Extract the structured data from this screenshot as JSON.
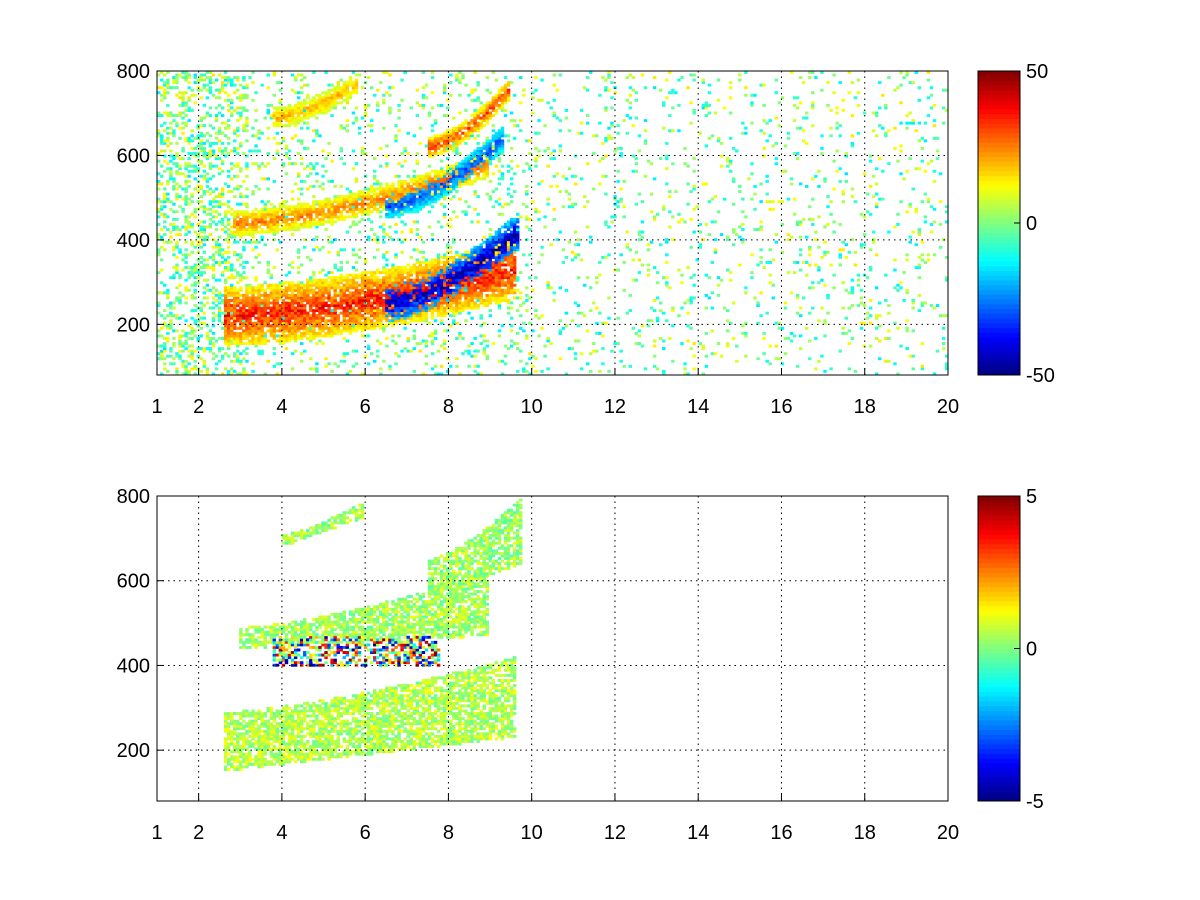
{
  "chart_data": [
    {
      "type": "heatmap",
      "title": "",
      "xlabel": "",
      "ylabel": "",
      "xlim": [
        1,
        20
      ],
      "ylim": [
        80,
        800
      ],
      "x_ticks": [
        1,
        2,
        4,
        6,
        8,
        10,
        12,
        14,
        16,
        18,
        20
      ],
      "y_ticks": [
        200,
        400,
        600,
        800
      ],
      "grid": true,
      "colormap": "jet",
      "clim": [
        -50,
        50
      ],
      "colorbar_ticks": [
        50,
        0,
        -50
      ],
      "features": [
        {
          "kind": "ridge",
          "x_start": 2.6,
          "x_end": 9.6,
          "y_start": 220,
          "y_end": 330,
          "value": 35,
          "spread": 70
        },
        {
          "kind": "ridge",
          "x_start": 6.5,
          "x_end": 9.7,
          "y_start": 250,
          "y_end": 420,
          "value": -45,
          "spread": 45
        },
        {
          "kind": "ridge",
          "x_start": 2.8,
          "x_end": 9.0,
          "y_start": 440,
          "y_end": 580,
          "value": 25,
          "spread": 30
        },
        {
          "kind": "ridge",
          "x_start": 6.5,
          "x_end": 9.3,
          "y_start": 480,
          "y_end": 640,
          "value": -30,
          "spread": 30
        },
        {
          "kind": "ridge",
          "x_start": 3.8,
          "x_end": 5.8,
          "y_start": 690,
          "y_end": 770,
          "value": 20,
          "spread": 25
        },
        {
          "kind": "ridge",
          "x_start": 7.5,
          "x_end": 9.5,
          "y_start": 620,
          "y_end": 760,
          "value": 30,
          "spread": 25
        }
      ],
      "noise_region": {
        "x_range": [
          1,
          20
        ],
        "value_range": [
          -15,
          15
        ]
      }
    },
    {
      "type": "heatmap",
      "title": "",
      "xlabel": "",
      "ylabel": "",
      "xlim": [
        1,
        20
      ],
      "ylim": [
        80,
        800
      ],
      "x_ticks": [
        1,
        2,
        4,
        6,
        8,
        10,
        12,
        14,
        16,
        18,
        20
      ],
      "y_ticks": [
        200,
        400,
        600,
        800
      ],
      "grid": true,
      "colormap": "jet",
      "clim": [
        -5,
        5
      ],
      "colorbar_ticks": [
        5,
        0,
        -5
      ],
      "features": [
        {
          "kind": "band",
          "x_start": 2.6,
          "x_end": 9.6,
          "y_low_start": 150,
          "y_low_end": 230,
          "y_high_start": 290,
          "y_high_end": 420,
          "value": 0.5
        },
        {
          "kind": "band",
          "x_start": 3.0,
          "x_end": 9.0,
          "y_low_start": 440,
          "y_low_end": 470,
          "y_high_start": 490,
          "y_high_end": 620,
          "value": 0.4
        },
        {
          "kind": "band",
          "x_start": 4.0,
          "x_end": 6.0,
          "y_low_start": 680,
          "y_low_end": 750,
          "y_high_start": 710,
          "y_high_end": 790,
          "value": 0.3
        },
        {
          "kind": "band",
          "x_start": 7.5,
          "x_end": 9.8,
          "y_low_start": 560,
          "y_low_end": 640,
          "y_high_start": 650,
          "y_high_end": 800,
          "value": 0.3
        },
        {
          "kind": "noisy_strip",
          "x_start": 3.8,
          "x_end": 7.8,
          "y_low": 400,
          "y_high": 470,
          "value_range": [
            -5,
            5
          ]
        }
      ]
    }
  ]
}
